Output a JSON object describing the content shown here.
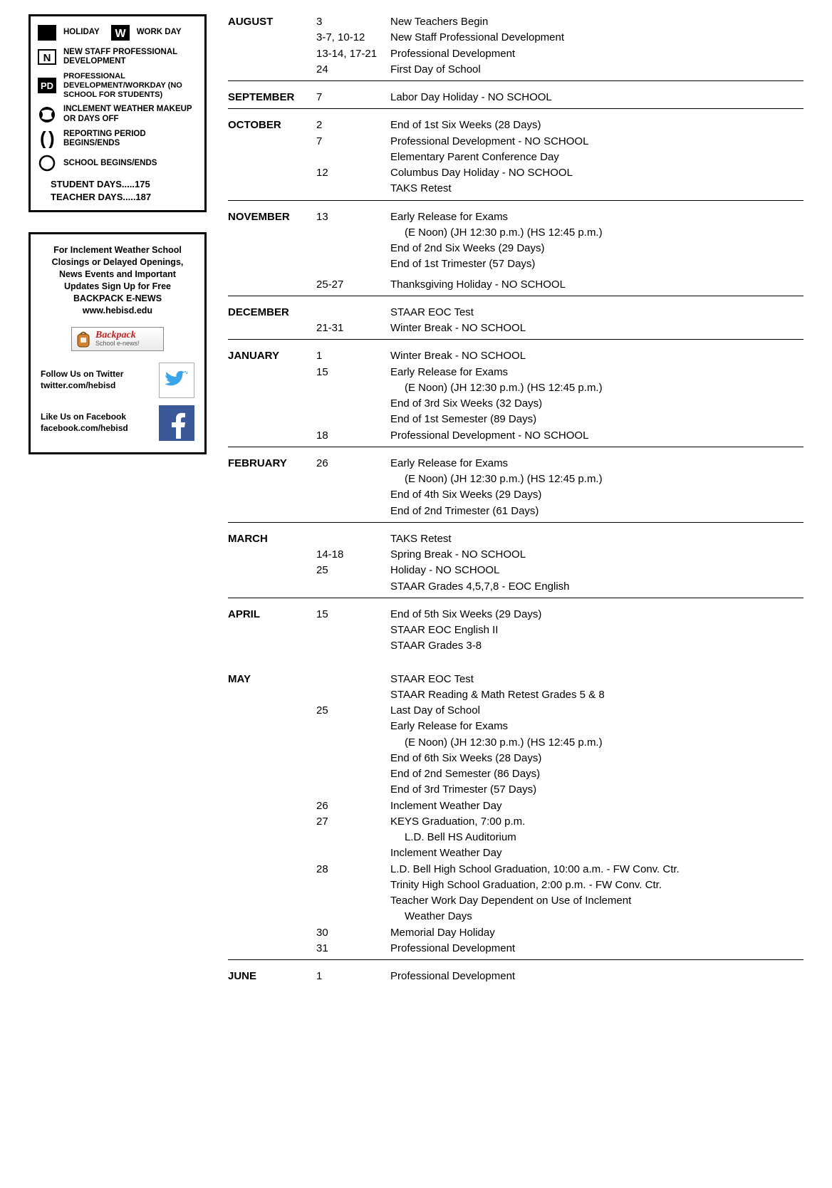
{
  "legend": {
    "rows": [
      {
        "icon": "black-square",
        "text1": "HOLIDAY",
        "icon2": "w-square",
        "text2": "WORK DAY"
      },
      {
        "icon": "n-square",
        "text1": "NEW STAFF PROFESSIONAL DEVELOPMENT"
      },
      {
        "icon": "pd-square",
        "text1": "PROFESSIONAL DEVELOPMENT/WORKDAY (NO SCHOOL FOR STUDENTS)"
      },
      {
        "icon": "weather",
        "text1": "INCLEMENT WEATHER MAKEUP OR DAYS OFF"
      },
      {
        "icon": "brackets",
        "text1": "REPORTING PERIOD BEGINS/ENDS"
      },
      {
        "icon": "circle",
        "text1": "SCHOOL BEGINS/ENDS"
      }
    ],
    "summary1": "STUDENT DAYS.....175",
    "summary2": "TEACHER DAYS.....187"
  },
  "info": {
    "lines": "For Inclement Weather School Closings or Delayed Openings, News Events and Important Updates Sign Up for Free",
    "line2": "BACKPACK E-NEWS",
    "line3": "www.hebisd.edu",
    "backpack_title": "Backpack",
    "backpack_sub": "School e-news!",
    "twitter_label": "Follow Us on Twitter",
    "twitter_handle": "twitter.com/hebisd",
    "facebook_label": "Like Us on Facebook",
    "facebook_handle": "facebook.com/hebisd"
  },
  "months": [
    {
      "name": "AUGUST",
      "rows": [
        {
          "date": "3",
          "desc": "New Teachers Begin"
        },
        {
          "date": "3-7, 10-12",
          "desc": "New Staff Professional Development"
        },
        {
          "date": "13-14, 17-21",
          "desc": "Professional Development"
        },
        {
          "date": "24",
          "desc": "First Day of School"
        }
      ],
      "rule": true
    },
    {
      "name": "SEPTEMBER",
      "rows": [
        {
          "date": "7",
          "desc": "Labor Day Holiday - NO SCHOOL"
        }
      ],
      "rule": true
    },
    {
      "name": "OCTOBER",
      "rows": [
        {
          "date": "2",
          "desc": "End of 1st Six Weeks (28 Days)"
        },
        {
          "date": "7",
          "desc": "Professional Development - NO SCHOOL"
        },
        {
          "date": "",
          "desc": "Elementary Parent Conference Day"
        },
        {
          "date": "12",
          "desc": "Columbus Day Holiday - NO SCHOOL"
        },
        {
          "date": "",
          "desc": "TAKS Retest"
        }
      ],
      "rule": true
    },
    {
      "name": "NOVEMBER",
      "rows": [
        {
          "date": "13",
          "desc": "Early Release for Exams"
        },
        {
          "date": "",
          "desc": "(E  Noon)   (JH  12:30 p.m.)   (HS  12:45 p.m.)",
          "indent": true
        },
        {
          "date": "",
          "desc": "End of 2nd Six Weeks (29 Days)"
        },
        {
          "date": "",
          "desc": "End of 1st Trimester (57 Days)"
        },
        {
          "spacer": true
        },
        {
          "date": "25-27",
          "desc": "Thanksgiving Holiday -  NO SCHOOL"
        }
      ],
      "rule": true
    },
    {
      "name": "DECEMBER",
      "rows": [
        {
          "date": "",
          "desc": "STAAR EOC Test"
        },
        {
          "date": "21-31",
          "desc": "Winter Break -  NO SCHOOL"
        }
      ],
      "rule": true
    },
    {
      "name": "JANUARY",
      "rows": [
        {
          "date": "1",
          "desc": "Winter Break -  NO SCHOOL"
        },
        {
          "date": "15",
          "desc": "Early Release for Exams"
        },
        {
          "date": "",
          "desc": "(E  Noon)   (JH  12:30 p.m.)   (HS  12:45 p.m.)",
          "indent": true
        },
        {
          "date": "",
          "desc": "End of 3rd Six Weeks (32 Days)"
        },
        {
          "date": "",
          "desc": "End of 1st Semester (89 Days)"
        },
        {
          "date": "18",
          "desc": "Professional Development -  NO SCHOOL"
        }
      ],
      "rule": true
    },
    {
      "name": "FEBRUARY",
      "rows": [
        {
          "date": "26",
          "desc": "Early Release for Exams"
        },
        {
          "date": "",
          "desc": "(E  Noon)   (JH  12:30 p.m.)   (HS  12:45 p.m.)",
          "indent": true
        },
        {
          "date": "",
          "desc": "End of 4th Six Weeks (29 Days)"
        },
        {
          "date": "",
          "desc": "End of 2nd Trimester (61 Days)"
        }
      ],
      "rule": true
    },
    {
      "name": "MARCH",
      "rows": [
        {
          "date": "",
          "desc": "TAKS Retest"
        },
        {
          "date": "14-18",
          "desc": "Spring Break - NO SCHOOL"
        },
        {
          "date": "25",
          "desc": "Holiday - NO SCHOOL"
        },
        {
          "date": "",
          "desc": "STAAR Grades 4,5,7,8 - EOC English"
        }
      ],
      "rule": true
    },
    {
      "name": "APRIL",
      "rows": [
        {
          "date": "15",
          "desc": "End of 5th Six Weeks (29 Days)"
        },
        {
          "date": "",
          "desc": "STAAR EOC English II"
        },
        {
          "date": "",
          "desc": "STAAR Grades 3-8"
        }
      ],
      "rule": false
    },
    {
      "name": "MAY",
      "rows": [
        {
          "date": "",
          "desc": "STAAR EOC Test"
        },
        {
          "date": "",
          "desc": "STAAR Reading & Math Retest Grades 5 & 8"
        },
        {
          "date": "25",
          "desc": "Last Day of School"
        },
        {
          "date": "",
          "desc": "Early Release for Exams"
        },
        {
          "date": "",
          "desc": "(E  Noon)   (JH  12:30 p.m.)   (HS  12:45 p.m.)",
          "indent": true
        },
        {
          "date": "",
          "desc": "End of 6th Six Weeks (28 Days)"
        },
        {
          "date": "",
          "desc": "End of 2nd Semester (86 Days)"
        },
        {
          "date": "",
          "desc": "End of 3rd Trimester (57 Days)"
        },
        {
          "date": "26",
          "desc": "Inclement Weather Day"
        },
        {
          "date": "27",
          "desc": "KEYS Graduation, 7:00 p.m."
        },
        {
          "date": "",
          "desc": "L.D. Bell HS Auditorium",
          "indent": true
        },
        {
          "date": "",
          "desc": "Inclement Weather Day"
        },
        {
          "date": "28",
          "desc": "L.D. Bell High School Graduation, 10:00 a.m. - FW Conv. Ctr."
        },
        {
          "date": "",
          "desc": "Trinity High School Graduation, 2:00 p.m. - FW Conv. Ctr."
        },
        {
          "date": "",
          "desc": "Teacher Work Day Dependent on Use of Inclement"
        },
        {
          "date": "",
          "desc": "Weather Days",
          "indent": true
        },
        {
          "date": "30",
          "desc": "Memorial Day Holiday"
        },
        {
          "date": "31",
          "desc": "Professional Development"
        }
      ],
      "rule": true
    },
    {
      "name": "JUNE",
      "rows": [
        {
          "date": "1",
          "desc": "Professional Development"
        }
      ],
      "rule": false
    }
  ],
  "colors": {
    "twitter": "#3aa6e8",
    "facebook": "#3b5998",
    "red": "#c02020"
  }
}
